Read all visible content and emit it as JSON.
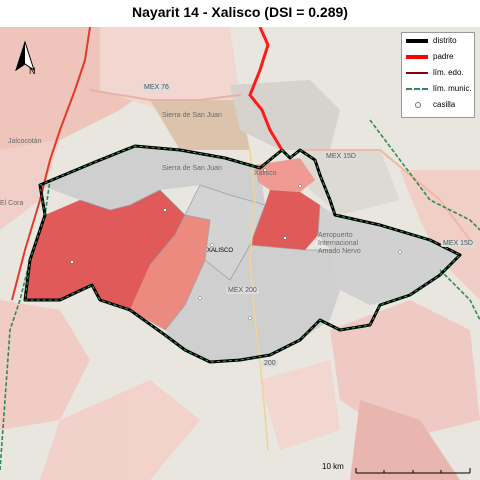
{
  "title": "Nayarit 14 - Xalisco (DSI = 0.289)",
  "legend": {
    "items": [
      {
        "label": "distrito",
        "color": "#000000"
      },
      {
        "label": "padre",
        "color": "#ff0000"
      },
      {
        "label": "lím. edo.",
        "color": "#8b0000"
      },
      {
        "label": "lím. munic.",
        "color": "#2e8b57"
      },
      {
        "label": "casilla",
        "color": "#ffffff"
      }
    ]
  },
  "north_label": "N",
  "scale_label": "10 km",
  "map_labels": {
    "mex76": "MEX 76",
    "sierra1": "Sierra de San Juan",
    "sierra2": "Sierra de San Juan",
    "jalcocotan": "Jalcocotán",
    "elcora": "El Cora",
    "mex15d_a": "MEX 15D",
    "mex15d_b": "MEX 15D",
    "xalisco": "XALISCO",
    "mex200": "MEX 200",
    "aeropuerto": "Aeropuerto Internacional Amado Nervo",
    "r200": "200",
    "xalisco_town": "Xalisco"
  },
  "colors": {
    "district": "#000000",
    "parent": "#ff0000",
    "state_limit": "#8b0000",
    "munic_limit": "#2e8b57",
    "fill_high": "#e05a5a",
    "fill_mid": "#ec8a80",
    "fill_low": "#cfcfcf"
  }
}
